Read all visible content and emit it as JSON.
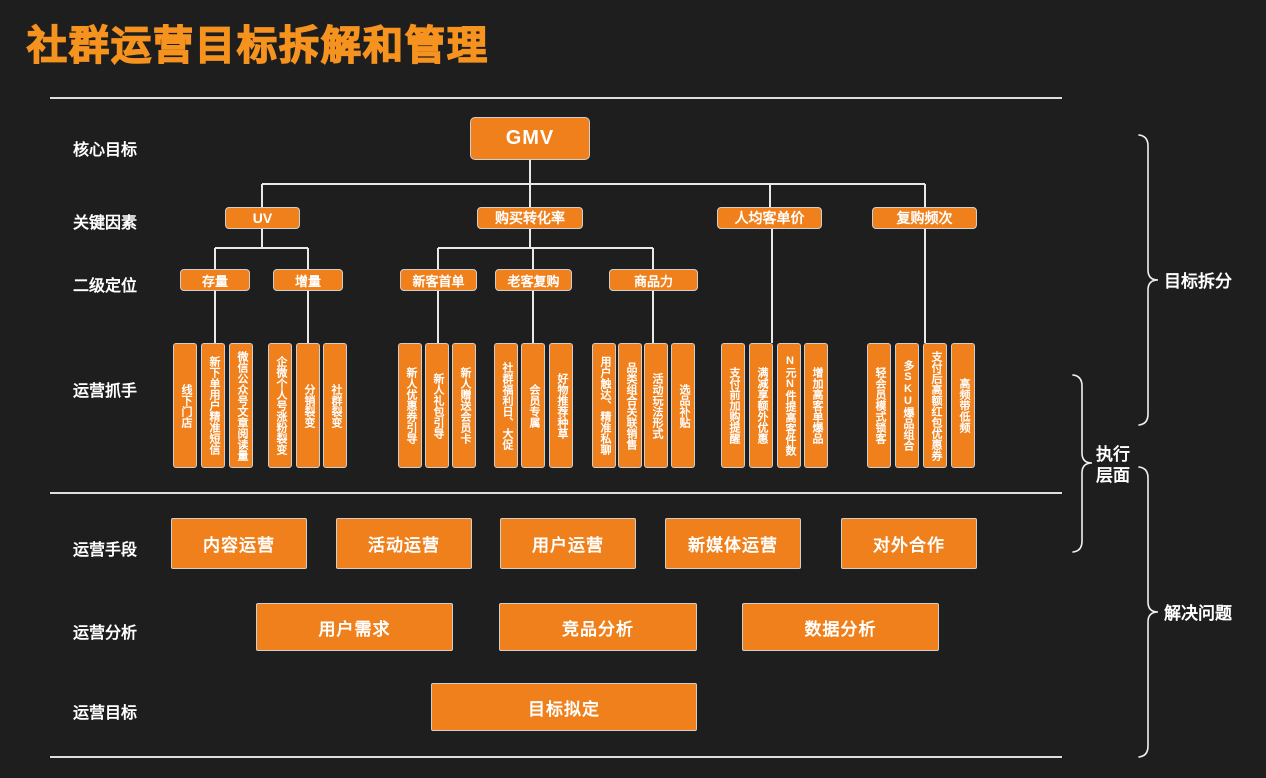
{
  "title": "社群运营目标拆解和管理",
  "section_labels": [
    "核心目标",
    "关键因素",
    "二级定位",
    "运营抓手",
    "运营手段",
    "运营分析",
    "运营目标"
  ],
  "tree": {
    "core_goal": "GMV",
    "key_factors": [
      "UV",
      "购买转化率",
      "人均客单价",
      "复购频次"
    ],
    "secondary_positions": [
      {
        "parent": "UV",
        "label": "存量"
      },
      {
        "parent": "UV",
        "label": "增量"
      },
      {
        "parent": "购买转化率",
        "label": "新客首单"
      },
      {
        "parent": "购买转化率",
        "label": "老客复购"
      },
      {
        "parent": "购买转化率",
        "label": "商品力"
      }
    ],
    "tactic_groups": [
      {
        "parent": "存量",
        "items": [
          "线下门店",
          "新下单用户精准短信",
          "微信公众号文章阅读量"
        ]
      },
      {
        "parent": "增量",
        "items": [
          "企微个人号涨粉裂变",
          "分销裂变",
          "社群裂变"
        ]
      },
      {
        "parent": "新客首单",
        "items": [
          "新人优惠券引导",
          "新人礼包引导",
          "新人赠送会员卡"
        ]
      },
      {
        "parent": "老客复购",
        "items": [
          "社群福利日、大促",
          "会员专属",
          "好物推荐种草"
        ]
      },
      {
        "parent": "商品力",
        "items": [
          "用户触达、精准私聊",
          "品类组合关联销售",
          "活动玩法形式",
          "选品补贴"
        ]
      },
      {
        "parent": "人均客单价",
        "items": [
          "支付前加购提醒",
          "满减享额外优惠",
          "N元N件提高客件数",
          "增加高客单爆品"
        ]
      },
      {
        "parent": "复购频次",
        "items": [
          "轻会员模式锁客",
          "多SKU爆品组合",
          "支付后高额红包优惠券",
          "高频带低频"
        ]
      }
    ]
  },
  "operation_methods": [
    "内容运营",
    "活动运营",
    "用户运营",
    "新媒体运营",
    "对外合作"
  ],
  "operation_analysis": [
    "用户需求",
    "竞品分析",
    "数据分析"
  ],
  "operation_goal": [
    "目标拟定"
  ],
  "brackets": {
    "goal_split": "目标拆分",
    "execution": "执行层面",
    "problem_solving": "解决问题"
  },
  "colors": {
    "accent": "#F0801C",
    "title": "#F6921E",
    "background": "#1E1E1E",
    "connector": "#E8E8E8",
    "text": "#FFFFFF"
  }
}
